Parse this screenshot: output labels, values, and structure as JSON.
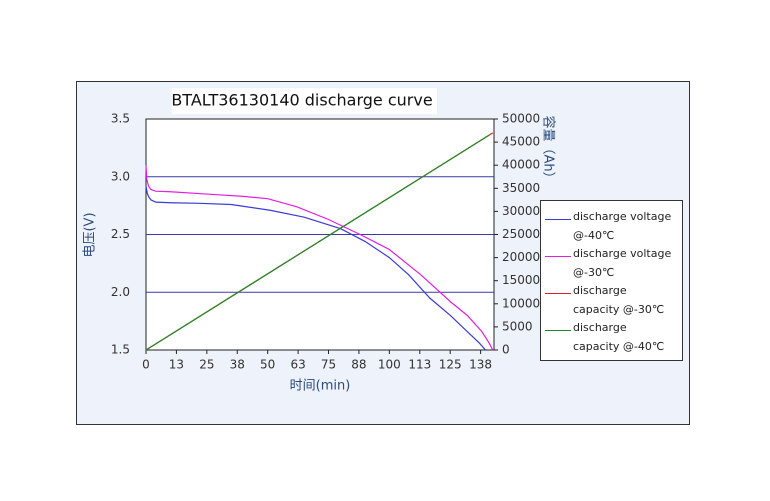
{
  "chart_data": {
    "type": "line",
    "title": "BTALT36130140 discharge curve",
    "ylabel": "电压(V)",
    "y2label": "容量（Ah）",
    "xlabel": "时间(min)",
    "xlim": [
      0,
      143
    ],
    "xticks": [
      0,
      {
        "value": 12.5,
        "label": "13"
      },
      25,
      {
        "value": 37.5,
        "label": "38"
      },
      50,
      {
        "value": 62.5,
        "label": "63"
      },
      75,
      {
        "value": 87.5,
        "label": "88"
      },
      100,
      {
        "value": 112.5,
        "label": "113"
      },
      125,
      {
        "value": 137.5,
        "label": "138"
      }
    ],
    "ylim": [
      1.5,
      3.5
    ],
    "yticks": [
      1.5,
      {
        "value": 2,
        "label": "2.0"
      },
      2.5,
      {
        "value": 3,
        "label": "3.0"
      },
      3.5
    ],
    "y2lim": [
      0,
      50000
    ],
    "y2ticks": [
      0,
      5000,
      10000,
      15000,
      20000,
      25000,
      30000,
      35000,
      40000,
      45000,
      50000
    ],
    "grid": true,
    "series": [
      {
        "name": "discharge voltage @-40℃",
        "color": "#3b3bd6",
        "x": [
          0,
          0.5,
          1,
          2,
          4,
          10,
          22,
          35,
          51,
          65,
          80,
          90,
          100,
          108,
          116.6,
          125,
          132,
          137,
          139.5
        ],
        "values": [
          2.92,
          2.86,
          2.83,
          2.8,
          2.78,
          2.775,
          2.77,
          2.76,
          2.71,
          2.65,
          2.55,
          2.44,
          2.3,
          2.15,
          1.95,
          1.8,
          1.66,
          1.56,
          1.5
        ]
      },
      {
        "name": "discharge voltage @-30℃",
        "color": "#e020e0",
        "x": [
          0,
          0.3,
          1,
          2,
          4,
          10,
          25,
          40,
          50,
          62,
          75,
          88,
          100,
          113,
          125,
          132,
          138,
          141,
          142.5
        ],
        "values": [
          3.1,
          2.98,
          2.92,
          2.89,
          2.875,
          2.87,
          2.85,
          2.83,
          2.81,
          2.74,
          2.63,
          2.5,
          2.37,
          2.15,
          1.92,
          1.8,
          1.66,
          1.56,
          1.5
        ]
      },
      {
        "name": "discharge capacity @-30℃",
        "color": "#e02020",
        "axis": "y2",
        "x": [
          0,
          142.5
        ],
        "values": [
          0,
          47000
        ]
      },
      {
        "name": "discharge capacity @-40℃",
        "color": "#1f8a2a",
        "axis": "y2",
        "x": [
          0,
          141
        ],
        "values": [
          0,
          46500
        ]
      }
    ]
  }
}
